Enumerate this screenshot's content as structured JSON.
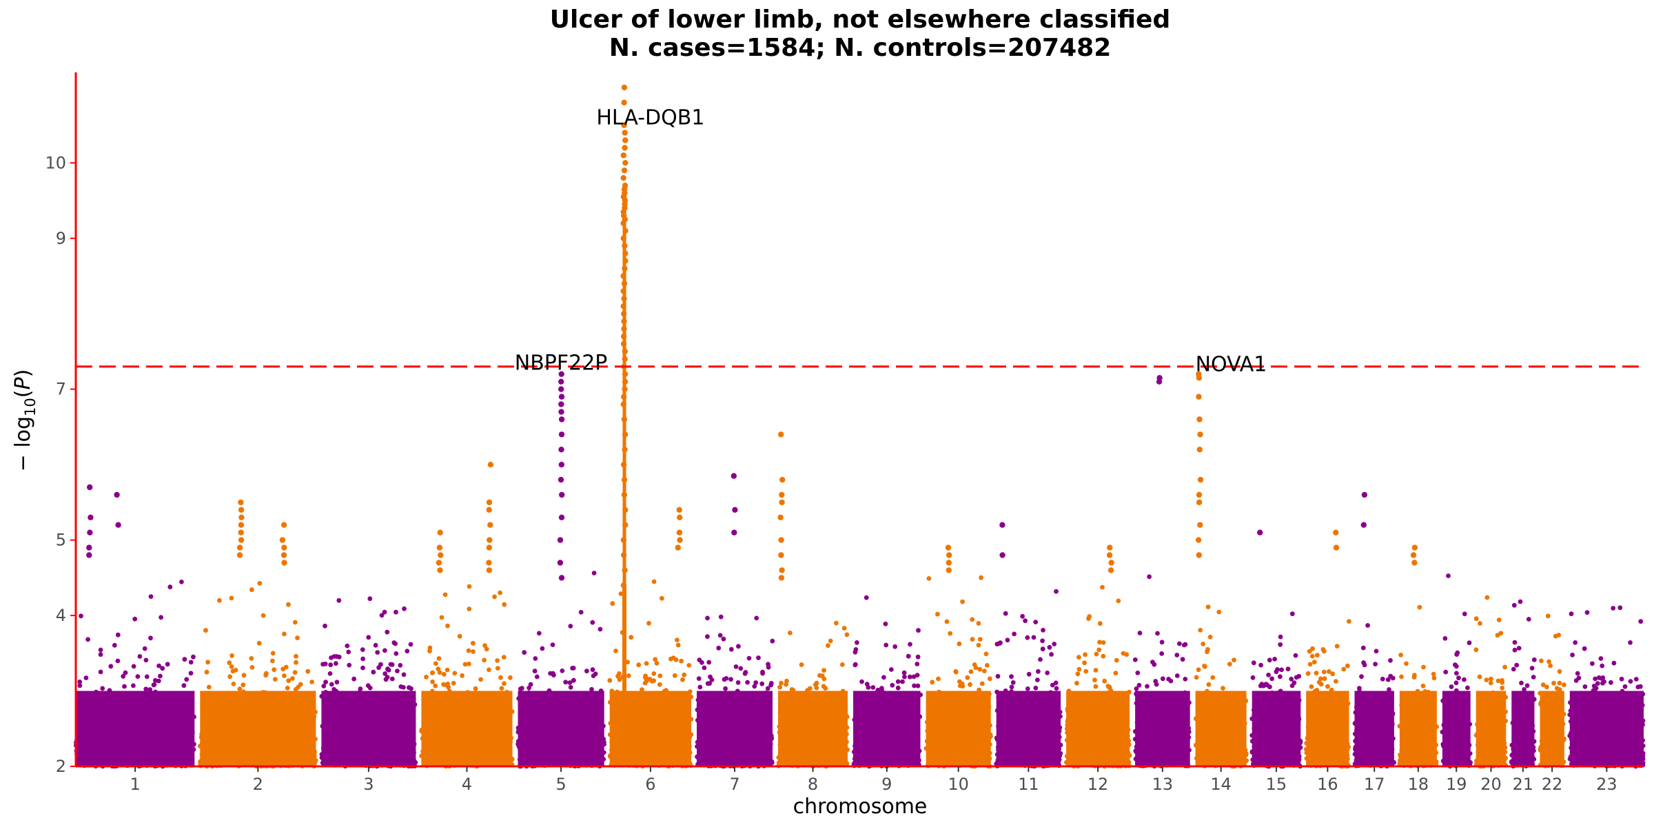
{
  "chart_data": {
    "type": "scatter",
    "title": "Ulcer of lower limb, not elsewhere classified",
    "subtitle": "N. cases=1584; N. controls=207482",
    "xlabel": "chromosome",
    "ylabel_main": "− log",
    "ylabel_sub": "10",
    "ylabel_var": "P",
    "ylim": [
      2,
      11.2
    ],
    "yticks": [
      "2",
      "4",
      "5",
      "7",
      "9",
      "10"
    ],
    "yticks_values": [
      2,
      4,
      5,
      7,
      9,
      10
    ],
    "significance_line": 7.3,
    "grid": false,
    "colors": {
      "odd": "#8b008b",
      "even": "#ee7600",
      "line": "#ff0000",
      "axis": "#ff0000"
    },
    "chromosomes": [
      {
        "label": "1",
        "len": 249
      },
      {
        "label": "2",
        "len": 243
      },
      {
        "label": "3",
        "len": 198
      },
      {
        "label": "4",
        "len": 191
      },
      {
        "label": "5",
        "len": 181
      },
      {
        "label": "6",
        "len": 171
      },
      {
        "label": "7",
        "len": 159
      },
      {
        "label": "8",
        "len": 146
      },
      {
        "label": "9",
        "len": 141
      },
      {
        "label": "10",
        "len": 136
      },
      {
        "label": "11",
        "len": 135
      },
      {
        "label": "12",
        "len": 133
      },
      {
        "label": "13",
        "len": 115
      },
      {
        "label": "14",
        "len": 107
      },
      {
        "label": "15",
        "len": 102
      },
      {
        "label": "16",
        "len": 90
      },
      {
        "label": "17",
        "len": 83
      },
      {
        "label": "18",
        "len": 78
      },
      {
        "label": "19",
        "len": 59
      },
      {
        "label": "20",
        "len": 63
      },
      {
        "label": "21",
        "len": 48
      },
      {
        "label": "22",
        "len": 51
      },
      {
        "label": "23",
        "len": 155
      }
    ],
    "annotations": [
      {
        "label": "HLA-DQB1",
        "chr": "6",
        "pos": 0.5,
        "y": 10.6
      },
      {
        "label": "NBPF22P",
        "chr": "5",
        "pos": 0.5,
        "y": 7.35
      },
      {
        "label": "NOVA1",
        "chr": "14",
        "pos": 0.08,
        "y": 7.33
      }
    ],
    "peaks": [
      {
        "chr": "6",
        "pos": 0.18,
        "values": [
          11.0,
          10.8,
          10.5,
          10.4,
          10.3,
          10.2,
          10.1,
          10.0,
          9.9,
          9.8,
          9.7,
          9.65,
          9.6,
          9.55,
          9.5,
          9.45,
          9.4,
          9.35,
          9.3,
          9.25,
          9.2,
          9.1,
          9.0,
          8.9,
          8.8,
          8.7,
          8.6,
          8.5,
          8.4,
          8.3,
          8.2,
          8.1,
          8.0,
          7.9,
          7.8,
          7.7,
          7.6,
          7.5,
          7.4,
          7.3,
          7.2,
          7.1,
          7.0,
          6.9,
          6.8,
          6.6,
          6.4,
          6.2,
          6.0,
          5.8,
          5.6,
          5.4,
          5.2,
          5.0,
          4.8,
          4.6,
          4.4
        ]
      },
      {
        "chr": "5",
        "pos": 0.5,
        "values": [
          7.2,
          7.1,
          7.0,
          6.9,
          6.8,
          6.7,
          6.6,
          6.4,
          6.2,
          6.0,
          5.8,
          5.6,
          5.3,
          5.0,
          4.7,
          4.5
        ]
      },
      {
        "chr": "14",
        "pos": 0.08,
        "values": [
          7.2,
          7.15,
          6.9,
          6.6,
          6.4,
          6.2,
          5.8,
          5.6,
          5.5,
          5.2,
          5.0,
          4.8
        ]
      },
      {
        "chr": "13",
        "pos": 0.45,
        "values": [
          7.15,
          7.1
        ]
      },
      {
        "chr": "8",
        "pos": 0.05,
        "values": [
          6.4,
          5.8,
          5.6,
          5.5,
          5.3,
          5.0,
          4.8,
          4.6,
          4.5
        ]
      },
      {
        "chr": "4",
        "pos": 0.75,
        "values": [
          6.0,
          5.5,
          5.4,
          5.2,
          5.0,
          4.9,
          4.7,
          4.6
        ]
      },
      {
        "chr": "7",
        "pos": 0.5,
        "values": [
          5.85,
          5.4,
          5.1
        ]
      },
      {
        "chr": "1",
        "pos": 0.12,
        "values": [
          5.7,
          5.3,
          5.1,
          4.9,
          4.8
        ]
      },
      {
        "chr": "1",
        "pos": 0.35,
        "values": [
          5.6,
          5.2
        ]
      },
      {
        "chr": "2",
        "pos": 0.35,
        "values": [
          5.5,
          5.4,
          5.3,
          5.2,
          5.1,
          5.0,
          4.9,
          4.8
        ]
      },
      {
        "chr": "2",
        "pos": 0.72,
        "values": [
          5.2,
          5.0,
          4.9,
          4.8,
          4.7
        ]
      },
      {
        "chr": "17",
        "pos": 0.25,
        "values": [
          5.6,
          5.2
        ]
      },
      {
        "chr": "6",
        "pos": 0.85,
        "values": [
          5.4,
          5.3,
          5.1,
          5.0,
          4.9
        ]
      },
      {
        "chr": "4",
        "pos": 0.2,
        "values": [
          5.1,
          4.9,
          4.8,
          4.7,
          4.6
        ]
      },
      {
        "chr": "10",
        "pos": 0.35,
        "values": [
          4.9,
          4.8,
          4.7,
          4.6
        ]
      },
      {
        "chr": "11",
        "pos": 0.1,
        "values": [
          5.2,
          4.8
        ]
      },
      {
        "chr": "12",
        "pos": 0.7,
        "values": [
          4.9,
          4.8,
          4.7,
          4.6
        ]
      },
      {
        "chr": "16",
        "pos": 0.7,
        "values": [
          5.1,
          4.9
        ]
      },
      {
        "chr": "15",
        "pos": 0.15,
        "values": [
          5.1
        ]
      },
      {
        "chr": "18",
        "pos": 0.4,
        "values": [
          4.9,
          4.8,
          4.7
        ]
      }
    ]
  }
}
